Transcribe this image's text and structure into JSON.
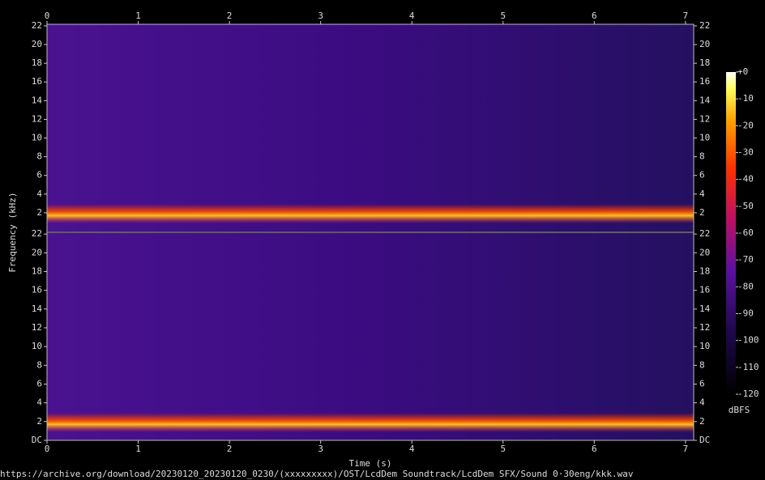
{
  "chart_data": [
    {
      "type": "spectrogram",
      "xlim": [
        0,
        7.09
      ],
      "xticks": [
        0,
        1,
        2,
        3,
        4,
        5,
        6,
        7
      ],
      "ylim": [
        0,
        22.17
      ],
      "yticks": [
        2,
        4,
        6,
        8,
        10,
        12,
        14,
        16,
        18,
        20,
        22
      ]
    },
    {
      "type": "spectrogram",
      "xlim": [
        0,
        7.09
      ],
      "xticks": [
        0,
        1,
        2,
        3,
        4,
        5,
        6,
        7
      ],
      "ylim": [
        0,
        22.1
      ],
      "yticks": [
        {
          "value": 0,
          "label": "DC"
        },
        2,
        4,
        6,
        8,
        10,
        12,
        14,
        16,
        18,
        20,
        22
      ]
    }
  ],
  "xlabel": "Time (s)",
  "ylabel": "Frequency (kHz)",
  "caption": "https://archive.org/download/20230120_20230120_0230/(xxxxxxxxx)/OST/LcdDem Soundtrack/LcdDem SFX/Sound 0·30eng/kkk.wav",
  "colorbar": {
    "label": "dBFS",
    "lim": [
      -120,
      0
    ],
    "ticks": [
      {
        "value": 0,
        "label": "+0"
      },
      -10,
      -20,
      -30,
      -40,
      -50,
      -60,
      -70,
      -80,
      -90,
      -100,
      -110,
      -120
    ]
  }
}
